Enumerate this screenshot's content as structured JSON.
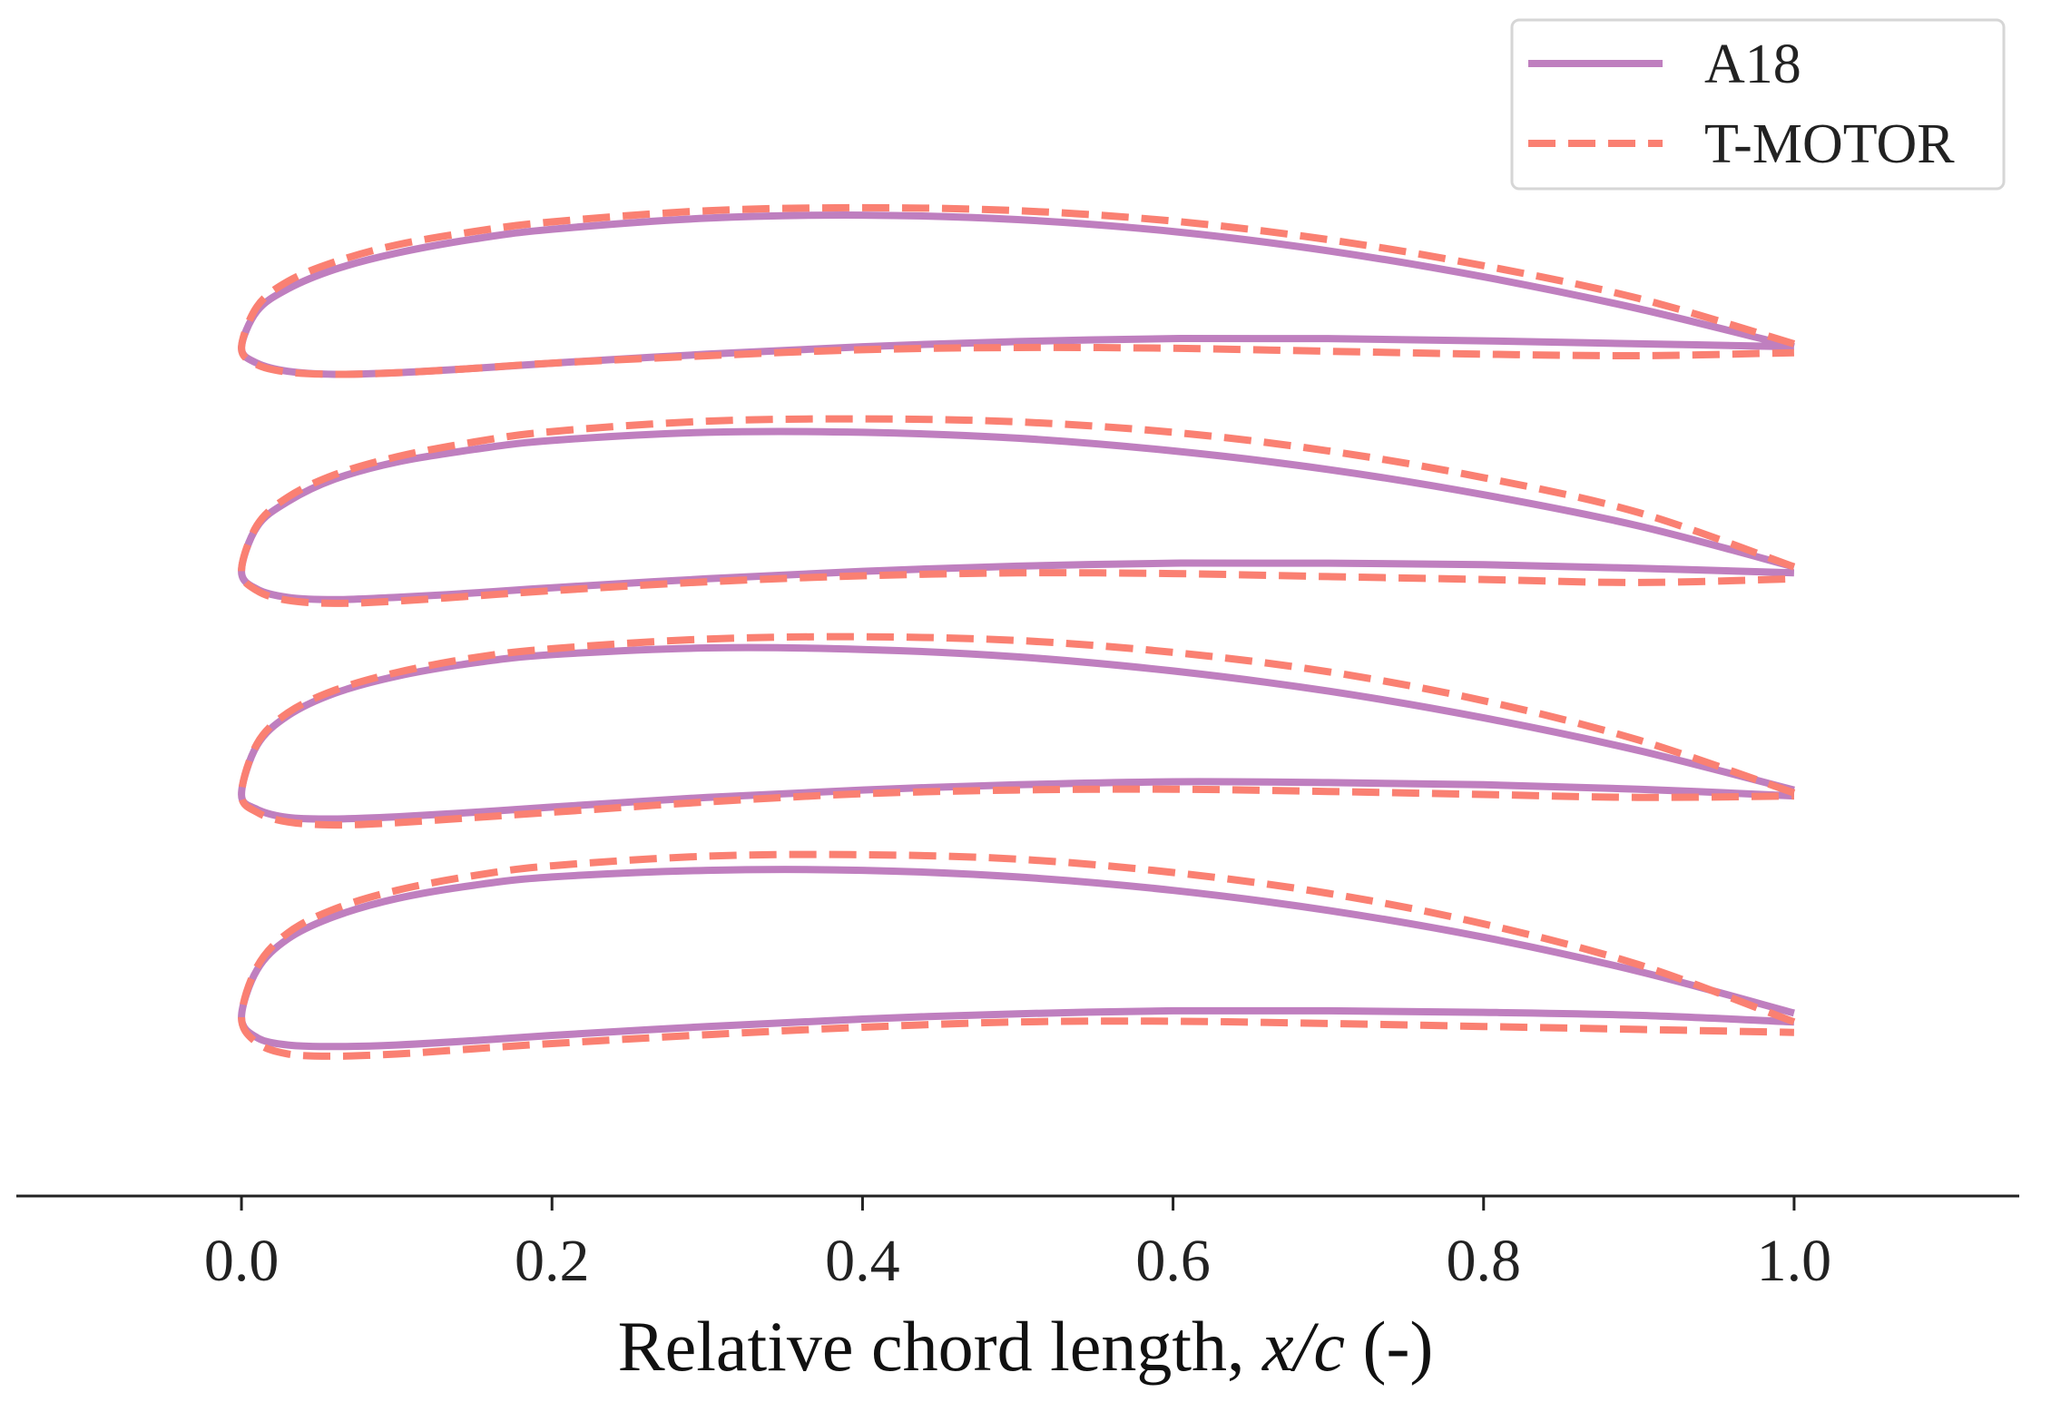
{
  "chart_data": {
    "type": "line",
    "xlabel": "Relative chord length, x/c (-)",
    "xlabel_parts": {
      "prefix": "Relative chord length, ",
      "italic": "x/c",
      "suffix": " (-)"
    },
    "xlim": [
      -0.145,
      1.145
    ],
    "xticks": [
      0.0,
      0.2,
      0.4,
      0.6,
      0.8,
      1.0
    ],
    "xtick_labels": [
      "0.0",
      "0.2",
      "0.4",
      "0.6",
      "0.8",
      "1.0"
    ],
    "legend_position": "top-right",
    "colors": {
      "A18": "#bf7fbf",
      "T-MOTOR": "#fa8072"
    },
    "series": [
      {
        "name": "A18",
        "style": "solid"
      },
      {
        "name": "T-MOTOR",
        "style": "dashed"
      }
    ],
    "x": [
      0.0,
      0.01,
      0.03,
      0.06,
      0.1,
      0.15,
      0.2,
      0.3,
      0.4,
      0.5,
      0.6,
      0.7,
      0.8,
      0.9,
      1.0
    ],
    "profiles": [
      {
        "A18": {
          "upper": [
            0.0,
            0.025,
            0.04,
            0.053,
            0.064,
            0.0735,
            0.08,
            0.0875,
            0.0895,
            0.0865,
            0.0785,
            0.0655,
            0.048,
            0.0265,
            0.001
          ],
          "lower": [
            0.0,
            -0.01,
            -0.0155,
            -0.0175,
            -0.0165,
            -0.0135,
            -0.01,
            -0.004,
            0.001,
            0.0045,
            0.0065,
            0.0065,
            0.005,
            0.003,
            0.001
          ]
        },
        "T-MOTOR": {
          "upper": [
            0.0,
            0.028,
            0.045,
            0.058,
            0.0695,
            0.0785,
            0.085,
            0.0925,
            0.0945,
            0.0925,
            0.0855,
            0.073,
            0.0555,
            0.0335,
            0.003
          ],
          "lower": [
            0.0,
            -0.011,
            -0.016,
            -0.0175,
            -0.0165,
            -0.0135,
            -0.01,
            -0.005,
            -0.001,
            0.0005,
            0.0,
            -0.002,
            -0.004,
            -0.005,
            -0.003
          ]
        }
      },
      {
        "A18": {
          "upper": [
            0.0,
            0.03,
            0.047,
            0.062,
            0.0735,
            0.082,
            0.088,
            0.0935,
            0.0935,
            0.0895,
            0.081,
            0.0685,
            0.0515,
            0.0305,
            0.003
          ],
          "lower": [
            0.0,
            -0.012,
            -0.0175,
            -0.019,
            -0.0175,
            -0.0145,
            -0.011,
            -0.005,
            0.0,
            0.0035,
            0.0055,
            0.0055,
            0.0045,
            0.002,
            -0.001
          ]
        },
        "T-MOTOR": {
          "upper": [
            0.0,
            0.031,
            0.05,
            0.065,
            0.077,
            0.087,
            0.094,
            0.101,
            0.1025,
            0.1005,
            0.0935,
            0.081,
            0.063,
            0.0395,
            0.003
          ],
          "lower": [
            0.0,
            -0.013,
            -0.0195,
            -0.0215,
            -0.02,
            -0.0165,
            -0.013,
            -0.007,
            -0.003,
            -0.001,
            -0.0015,
            -0.0035,
            -0.0055,
            -0.0075,
            -0.005
          ]
        }
      },
      {
        "A18": {
          "upper": [
            0.0,
            0.033,
            0.053,
            0.068,
            0.0795,
            0.0885,
            0.094,
            0.0985,
            0.0975,
            0.0925,
            0.083,
            0.0695,
            0.0515,
            0.0295,
            0.003
          ],
          "lower": [
            0.0,
            -0.01,
            -0.0155,
            -0.0165,
            -0.015,
            -0.012,
            -0.0085,
            -0.002,
            0.003,
            0.0065,
            0.0085,
            0.008,
            0.0065,
            0.0035,
            -0.001
          ]
        },
        "T-MOTOR": {
          "upper": [
            0.0,
            0.034,
            0.055,
            0.07,
            0.082,
            0.092,
            0.098,
            0.1045,
            0.106,
            0.1035,
            0.0955,
            0.0825,
            0.063,
            0.0365,
            0.001
          ],
          "lower": [
            0.0,
            -0.012,
            -0.0185,
            -0.0205,
            -0.019,
            -0.0155,
            -0.012,
            -0.005,
            0.0005,
            0.003,
            0.0035,
            0.002,
            0.0,
            -0.002,
            -0.001
          ]
        }
      },
      {
        "A18": {
          "upper": [
            0.0,
            0.032,
            0.053,
            0.068,
            0.08,
            0.089,
            0.0945,
            0.099,
            0.099,
            0.0945,
            0.0855,
            0.072,
            0.054,
            0.031,
            0.003
          ],
          "lower": [
            0.0,
            -0.0135,
            -0.0185,
            -0.0195,
            -0.0185,
            -0.0155,
            -0.012,
            -0.006,
            -0.001,
            0.0025,
            0.0045,
            0.0045,
            0.0035,
            0.0015,
            -0.003
          ]
        },
        "T-MOTOR": {
          "upper": [
            0.0,
            0.034,
            0.057,
            0.073,
            0.0855,
            0.0955,
            0.102,
            0.1085,
            0.1095,
            0.1065,
            0.0975,
            0.0835,
            0.063,
            0.0355,
            -0.003
          ],
          "lower": [
            0.0,
            -0.017,
            -0.0245,
            -0.026,
            -0.0245,
            -0.021,
            -0.0175,
            -0.0115,
            -0.0065,
            -0.003,
            -0.0025,
            -0.004,
            -0.006,
            -0.008,
            -0.01
          ]
        }
      }
    ],
    "profile_offsets": [
      -0.0,
      -0.15,
      -0.3,
      -0.45
    ],
    "ylim": [
      -0.57,
      0.225
    ]
  }
}
